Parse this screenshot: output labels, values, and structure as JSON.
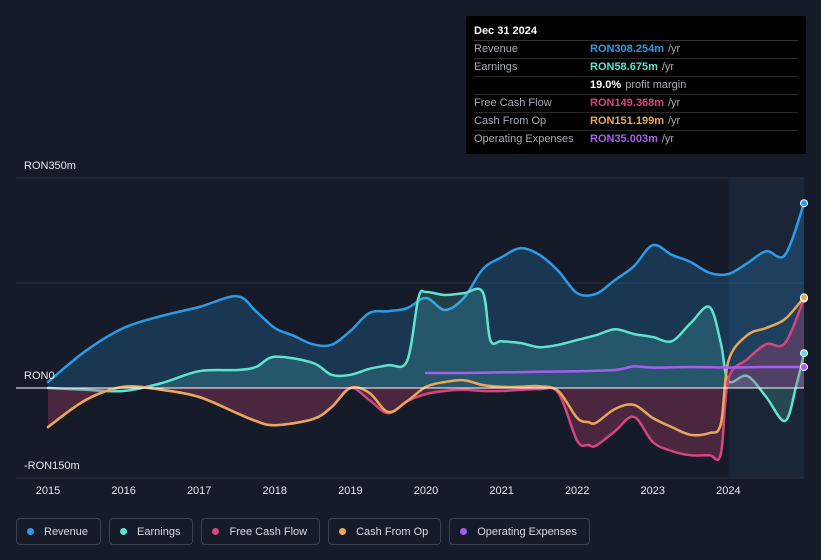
{
  "tooltip": {
    "date": "Dec 31 2024",
    "rows": [
      {
        "label": "Revenue",
        "value": "RON308.254m",
        "unit": "/yr",
        "color": "#2e9be8"
      },
      {
        "label": "Earnings",
        "value": "RON58.675m",
        "unit": "/yr",
        "color": "#5ee3d0"
      },
      {
        "label": "",
        "value": "19.0%",
        "unit": "profit margin",
        "color": "#ffffff"
      },
      {
        "label": "Free Cash Flow",
        "value": "RON149.368m",
        "unit": "/yr",
        "color": "#d6457e"
      },
      {
        "label": "Cash From Op",
        "value": "RON151.199m",
        "unit": "/yr",
        "color": "#e8a85a"
      },
      {
        "label": "Operating Expenses",
        "value": "RON35.003m",
        "unit": "/yr",
        "color": "#a55ef0"
      }
    ]
  },
  "colors": {
    "revenue": "#2e9be8",
    "earnings": "#5ee3d0",
    "fcf": "#d6457e",
    "cfo": "#e8a85a",
    "opex": "#a55ef0"
  },
  "chart_data": {
    "type": "area",
    "title": "",
    "y_axis_labels": [
      "RON350m",
      "RON0",
      "-RON150m"
    ],
    "ylim": [
      -150,
      350
    ],
    "xlim": [
      2015.0,
      2025.0
    ],
    "x_ticks": [
      "2015",
      "2016",
      "2017",
      "2018",
      "2019",
      "2020",
      "2021",
      "2022",
      "2023",
      "2024"
    ],
    "series": [
      {
        "name": "Revenue",
        "key": "revenue",
        "x": [
          2015.0,
          2015.5,
          2016.0,
          2016.5,
          2017.0,
          2017.5,
          2017.75,
          2018.0,
          2018.25,
          2018.5,
          2018.75,
          2019.0,
          2019.25,
          2019.5,
          2019.75,
          2020.0,
          2020.25,
          2020.5,
          2020.75,
          2021.0,
          2021.25,
          2021.5,
          2021.75,
          2022.0,
          2022.25,
          2022.5,
          2022.75,
          2023.0,
          2023.25,
          2023.5,
          2023.75,
          2024.0,
          2024.25,
          2024.5,
          2024.75,
          2025.0
        ],
        "values": [
          10,
          62,
          100,
          120,
          135,
          153,
          128,
          100,
          87,
          73,
          72,
          95,
          125,
          128,
          133,
          150,
          130,
          150,
          198,
          218,
          233,
          222,
          195,
          158,
          157,
          180,
          203,
          238,
          222,
          210,
          192,
          190,
          208,
          228,
          222,
          308
        ]
      },
      {
        "name": "Earnings",
        "key": "earnings",
        "x": [
          2015.0,
          2015.5,
          2016.0,
          2016.5,
          2017.0,
          2017.5,
          2017.75,
          2018.0,
          2018.5,
          2018.75,
          2019.0,
          2019.25,
          2019.5,
          2019.75,
          2019.9,
          2020.0,
          2020.25,
          2020.5,
          2020.75,
          2020.85,
          2021.0,
          2021.25,
          2021.5,
          2021.75,
          2022.0,
          2022.25,
          2022.5,
          2022.75,
          2023.0,
          2023.25,
          2023.5,
          2023.75,
          2023.9,
          2024.0,
          2024.25,
          2024.5,
          2024.75,
          2024.9,
          2025.0
        ],
        "values": [
          0,
          -3,
          -5,
          8,
          28,
          30,
          35,
          52,
          42,
          22,
          22,
          32,
          38,
          45,
          150,
          160,
          155,
          158,
          160,
          80,
          78,
          75,
          68,
          72,
          80,
          88,
          98,
          90,
          85,
          78,
          108,
          135,
          75,
          12,
          20,
          -15,
          -55,
          5,
          58
        ]
      },
      {
        "name": "Free Cash Flow",
        "key": "fcf",
        "x": [
          2015.0,
          2015.5,
          2016.0,
          2016.5,
          2017.0,
          2017.5,
          2017.75,
          2018.0,
          2018.5,
          2018.75,
          2019.0,
          2019.25,
          2019.5,
          2019.75,
          2020.0,
          2020.25,
          2020.5,
          2020.75,
          2021.0,
          2021.25,
          2021.5,
          2021.75,
          2022.0,
          2022.15,
          2022.25,
          2022.5,
          2022.75,
          2023.0,
          2023.25,
          2023.5,
          2023.75,
          2023.9,
          2024.0,
          2024.25,
          2024.5,
          2024.75,
          2025.0
        ],
        "values": [
          -65,
          -20,
          2,
          -3,
          -15,
          -42,
          -55,
          -62,
          -52,
          -32,
          0,
          -20,
          -42,
          -22,
          -10,
          -5,
          -3,
          -5,
          -5,
          -3,
          -2,
          -8,
          -88,
          -95,
          -96,
          -72,
          -48,
          -90,
          -105,
          -112,
          -112,
          -110,
          15,
          48,
          73,
          75,
          149
        ]
      },
      {
        "name": "Cash From Op",
        "key": "cfo",
        "x": [
          2015.0,
          2015.5,
          2016.0,
          2016.5,
          2017.0,
          2017.5,
          2017.75,
          2018.0,
          2018.5,
          2018.75,
          2019.0,
          2019.25,
          2019.5,
          2019.75,
          2020.0,
          2020.25,
          2020.5,
          2020.75,
          2021.0,
          2021.25,
          2021.5,
          2021.75,
          2022.0,
          2022.15,
          2022.25,
          2022.5,
          2022.75,
          2023.0,
          2023.25,
          2023.5,
          2023.75,
          2023.9,
          2024.0,
          2024.25,
          2024.5,
          2024.75,
          2025.0
        ],
        "values": [
          -65,
          -20,
          2,
          -3,
          -15,
          -42,
          -55,
          -62,
          -52,
          -32,
          0,
          -8,
          -40,
          -22,
          2,
          10,
          13,
          5,
          2,
          2,
          3,
          -5,
          -50,
          -57,
          -58,
          -35,
          -28,
          -50,
          -65,
          -78,
          -75,
          -60,
          45,
          88,
          100,
          115,
          151
        ]
      },
      {
        "name": "Operating Expenses",
        "key": "opex",
        "x": [
          2020.0,
          2020.5,
          2021.0,
          2021.5,
          2022.0,
          2022.5,
          2022.75,
          2023.0,
          2023.5,
          2024.0,
          2024.5,
          2025.0
        ],
        "values": [
          25,
          25,
          26,
          27,
          28,
          30,
          36,
          34,
          35,
          34,
          35,
          35
        ]
      }
    ]
  },
  "legend": [
    {
      "label": "Revenue",
      "color": "#2e9be8"
    },
    {
      "label": "Earnings",
      "color": "#5ee3d0"
    },
    {
      "label": "Free Cash Flow",
      "color": "#d6457e"
    },
    {
      "label": "Cash From Op",
      "color": "#e8a85a"
    },
    {
      "label": "Operating Expenses",
      "color": "#a55ef0"
    }
  ]
}
